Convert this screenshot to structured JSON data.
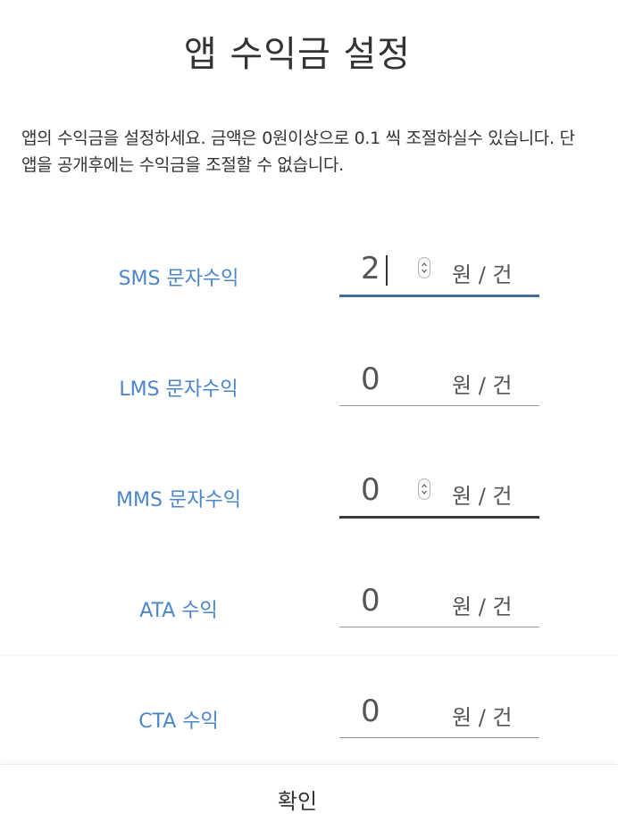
{
  "dialog": {
    "title": "앱 수익금 설정",
    "description": "앱의 수익금을 설정하세요. 금액은 0원이상으로 0.1 씩 조절하실수 있습니다. 단 앱을 공개후에는 수익금을 조절할 수 없습니다."
  },
  "fields": [
    {
      "label": "SMS 문자수익",
      "value": "2",
      "unit": "원 / 건",
      "state": "focused"
    },
    {
      "label": "LMS 문자수익",
      "value": "0",
      "unit": "원 / 건",
      "state": "normal"
    },
    {
      "label": "MMS 문자수익",
      "value": "0",
      "unit": "원 / 건",
      "state": "hover"
    },
    {
      "label": "ATA 수익",
      "value": "0",
      "unit": "원 / 건",
      "state": "normal"
    },
    {
      "label": "CTA 수익",
      "value": "0",
      "unit": "원 / 건",
      "state": "normal"
    }
  ],
  "footer": {
    "confirm_label": "확인"
  },
  "colors": {
    "label": "#4a86c8",
    "focus_underline": "#4a6b93",
    "hover_underline": "#3a3a3a",
    "text": "#333333"
  }
}
